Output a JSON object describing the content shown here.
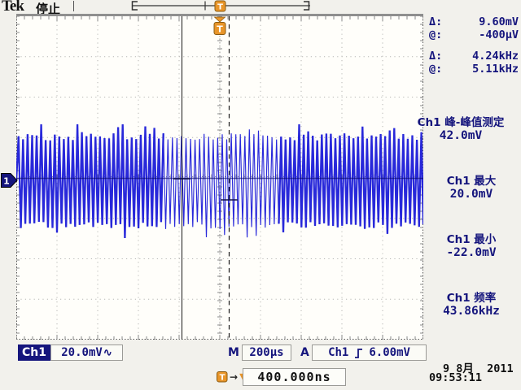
{
  "header": {
    "brand": "Tek",
    "status": "停止",
    "trigger_flag": "T"
  },
  "colors": {
    "waveform_blue": "#1c1cd8",
    "navy": "#15157d",
    "accent_orange": "#e8952a",
    "orange_border": "#8a5a10"
  },
  "cursors": {
    "rows": [
      {
        "label": "Δ:",
        "value": "9.60mV"
      },
      {
        "label": "@:",
        "value": "-400μV"
      },
      {
        "label": "Δ:",
        "value": "4.24kHz"
      },
      {
        "label": "@:",
        "value": "5.11kHz"
      }
    ]
  },
  "measurements": [
    {
      "label": "Ch1 峰-峰值测定",
      "value": "42.0mV"
    },
    {
      "label": "Ch1 最大",
      "value": "20.0mV"
    },
    {
      "label": "Ch1 最小",
      "value": "-22.0mV"
    },
    {
      "label": "Ch1 频率",
      "value": "43.86kHz"
    }
  ],
  "channel_marker": "1",
  "statusbar": {
    "channel_badge": "Ch1",
    "scale": "20.0mV",
    "coupling_glyph": "∿",
    "timebase_label": "M",
    "timebase": "200μs",
    "trigger_label": "A",
    "trigger_source": "Ch1",
    "trigger_level": "6.00mV"
  },
  "horizontal": {
    "marker": "T",
    "arrow_glyph": "→",
    "triangle_glyph": "▼",
    "position": "400.000ns"
  },
  "datetime": {
    "date": "9 8月  2011",
    "time": "09:53:11"
  }
}
